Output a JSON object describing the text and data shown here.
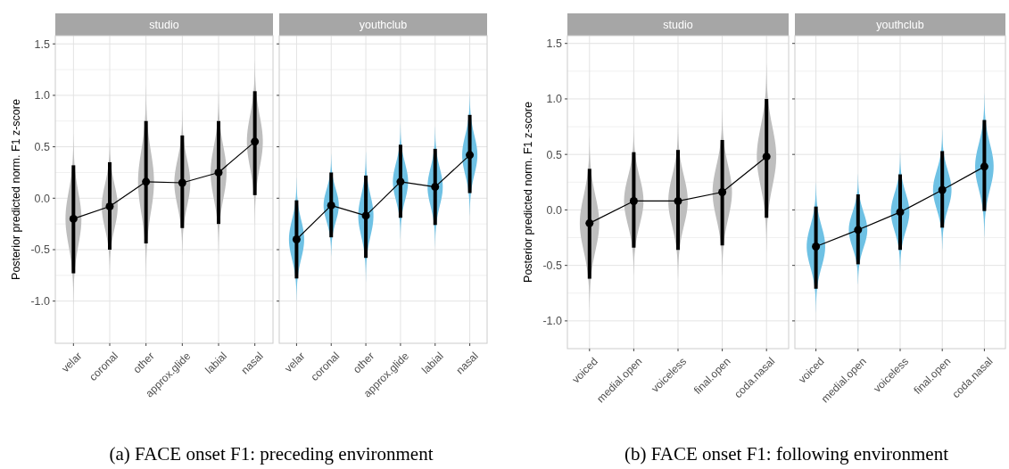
{
  "chart_data": [
    {
      "type": "line",
      "title": "studio",
      "ylabel": "Posterior predicted norm. F1 z-score",
      "annotations": [
        "(a) FACE onset F1: preceding environment"
      ],
      "categories": [
        "velar",
        "coronal",
        "other",
        "approx.glide",
        "labial",
        "nasal"
      ],
      "ylim": [
        -1.41,
        1.58
      ],
      "yticks": [
        {
          "value": -1,
          "label": "-1.0"
        },
        {
          "value": -0.5,
          "label": "-0.5"
        },
        {
          "value": 0,
          "label": "0.0"
        },
        {
          "value": 0.5,
          "label": "0.5"
        },
        {
          "value": 1,
          "label": "1.0"
        },
        {
          "value": 1.5,
          "label": "1.5"
        }
      ],
      "grid": true,
      "marker": "circle",
      "series": [
        {
          "color": "#000000",
          "values": [
            -0.2,
            -0.08,
            0.16,
            0.15,
            0.25,
            0.55
          ],
          "errors": [
            [
              -0.73,
              0.32
            ],
            [
              -0.5,
              0.35
            ],
            [
              -0.44,
              0.75
            ],
            [
              -0.29,
              0.61
            ],
            [
              -0.25,
              0.75
            ],
            [
              0.03,
              1.04
            ]
          ]
        }
      ]
    },
    {
      "type": "line",
      "title": "youthclub",
      "tick_labels": "x",
      "categories": [
        "velar",
        "coronal",
        "other",
        "approx.glide",
        "labial",
        "nasal"
      ],
      "ylim": [
        -1.41,
        1.58
      ],
      "yticks": [
        {
          "value": -1,
          "label": null
        },
        {
          "value": -0.5,
          "label": null
        },
        {
          "value": 0,
          "label": null
        },
        {
          "value": 0.5,
          "label": null
        },
        {
          "value": 1,
          "label": null
        },
        {
          "value": 1.5,
          "label": null
        }
      ],
      "grid": true,
      "marker": "circle",
      "series": [
        {
          "color": "#000000",
          "values": [
            -0.4,
            -0.07,
            -0.17,
            0.16,
            0.11,
            0.42
          ],
          "errors": [
            [
              -0.78,
              -0.02
            ],
            [
              -0.38,
              0.25
            ],
            [
              -0.58,
              0.22
            ],
            [
              -0.19,
              0.52
            ],
            [
              -0.26,
              0.48
            ],
            [
              0.05,
              0.81
            ]
          ]
        }
      ]
    },
    {
      "type": "line",
      "title": "studio",
      "ylabel": "Posterior predicted norm. F1 z-score",
      "annotations": [
        "(b) FACE onset F1: following environment"
      ],
      "categories": [
        "voiced",
        "medial.open",
        "voiceless",
        "final.open",
        "coda.nasal"
      ],
      "ylim": [
        -1.25,
        1.57
      ],
      "yticks": [
        {
          "value": -1,
          "label": "-1.0"
        },
        {
          "value": -0.5,
          "label": "-0.5"
        },
        {
          "value": 0,
          "label": "0.0"
        },
        {
          "value": 0.5,
          "label": "0.5"
        },
        {
          "value": 1,
          "label": "1.0"
        },
        {
          "value": 1.5,
          "label": "1.5"
        }
      ],
      "grid": true,
      "marker": "circle",
      "series": [
        {
          "color": "#000000",
          "values": [
            -0.12,
            0.08,
            0.08,
            0.16,
            0.48
          ],
          "errors": [
            [
              -0.62,
              0.37
            ],
            [
              -0.34,
              0.52
            ],
            [
              -0.36,
              0.54
            ],
            [
              -0.32,
              0.63
            ],
            [
              -0.07,
              1.0
            ]
          ]
        }
      ]
    },
    {
      "type": "line",
      "title": "youthclub",
      "tick_labels": "x",
      "categories": [
        "voiced",
        "medial.open",
        "voiceless",
        "final.open",
        "coda.nasal"
      ],
      "ylim": [
        -1.25,
        1.57
      ],
      "yticks": [
        {
          "value": -1,
          "label": null
        },
        {
          "value": -0.5,
          "label": null
        },
        {
          "value": 0,
          "label": null
        },
        {
          "value": 0.5,
          "label": null
        },
        {
          "value": 1,
          "label": null
        },
        {
          "value": 1.5,
          "label": null
        }
      ],
      "grid": true,
      "marker": "circle",
      "series": [
        {
          "color": "#000000",
          "values": [
            -0.33,
            -0.18,
            -0.02,
            0.18,
            0.39
          ],
          "errors": [
            [
              -0.71,
              0.03
            ],
            [
              -0.49,
              0.14
            ],
            [
              -0.36,
              0.32
            ],
            [
              -0.16,
              0.53
            ],
            [
              -0.01,
              0.81
            ]
          ]
        }
      ]
    }
  ]
}
